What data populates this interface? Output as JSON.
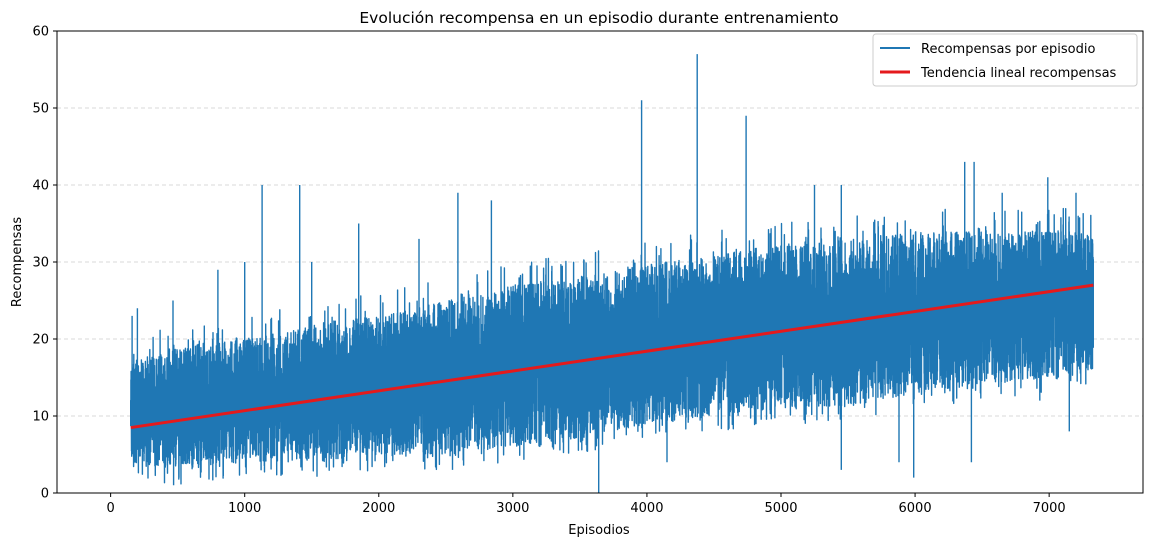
{
  "chart_data": {
    "type": "line",
    "title": "Evolución recompensa en un episodio durante entrenamiento",
    "xlabel": "Episodios",
    "ylabel": "Recompensas",
    "xlim": [
      -400,
      7700
    ],
    "ylim": [
      0,
      60
    ],
    "x_ticks": [
      0,
      1000,
      2000,
      3000,
      4000,
      5000,
      6000,
      7000
    ],
    "y_ticks": [
      0,
      10,
      20,
      30,
      40,
      50,
      60
    ],
    "grid": "horizontal dashed",
    "legend_position": "top-right",
    "series": [
      {
        "name": "Recompensas por episodio",
        "color": "#1f77b4",
        "x_range": [
          150,
          7330
        ],
        "band_low": [
          [
            150,
            4
          ],
          [
            500,
            3
          ],
          [
            1000,
            4
          ],
          [
            1500,
            4
          ],
          [
            2000,
            5
          ],
          [
            2500,
            5
          ],
          [
            3000,
            6
          ],
          [
            3500,
            7
          ],
          [
            4000,
            9
          ],
          [
            4500,
            10
          ],
          [
            5000,
            11
          ],
          [
            5500,
            11
          ],
          [
            6000,
            13
          ],
          [
            6500,
            14
          ],
          [
            7000,
            15
          ],
          [
            7330,
            16
          ]
        ],
        "band_high": [
          [
            150,
            17
          ],
          [
            500,
            19
          ],
          [
            1000,
            20
          ],
          [
            1500,
            22
          ],
          [
            2000,
            23
          ],
          [
            2500,
            25
          ],
          [
            3000,
            27
          ],
          [
            3500,
            28
          ],
          [
            4000,
            30
          ],
          [
            4500,
            31
          ],
          [
            5000,
            32
          ],
          [
            5500,
            33
          ],
          [
            6000,
            34
          ],
          [
            6500,
            34
          ],
          [
            7000,
            34
          ],
          [
            7330,
            34
          ]
        ],
        "peaks": [
          [
            160,
            23
          ],
          [
            200,
            24
          ],
          [
            465,
            25
          ],
          [
            800,
            29
          ],
          [
            1000,
            30
          ],
          [
            1130,
            40
          ],
          [
            1410,
            40
          ],
          [
            1500,
            30
          ],
          [
            1850,
            35
          ],
          [
            2300,
            33
          ],
          [
            2590,
            39
          ],
          [
            2840,
            38
          ],
          [
            3960,
            51
          ],
          [
            4375,
            57
          ],
          [
            4740,
            49
          ],
          [
            5250,
            40
          ],
          [
            5450,
            40
          ],
          [
            6370,
            43
          ],
          [
            6440,
            43
          ],
          [
            6650,
            39
          ],
          [
            6990,
            41
          ],
          [
            7200,
            39
          ]
        ],
        "dips": [
          [
            470,
            1
          ],
          [
            510,
            2
          ],
          [
            1280,
            3
          ],
          [
            2550,
            3
          ],
          [
            3640,
            0
          ],
          [
            4150,
            4
          ],
          [
            5450,
            3
          ],
          [
            5880,
            4
          ],
          [
            5990,
            2
          ],
          [
            6420,
            4
          ],
          [
            6930,
            12
          ],
          [
            7150,
            8
          ]
        ]
      },
      {
        "name": "Tendencia lineal recompensas",
        "color": "#e41a1c",
        "x": [
          150,
          7330
        ],
        "values": [
          8.5,
          27.0
        ]
      }
    ]
  }
}
